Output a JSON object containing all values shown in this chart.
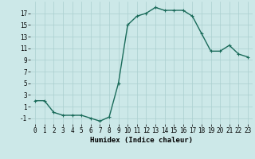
{
  "x": [
    0,
    1,
    2,
    3,
    4,
    5,
    6,
    7,
    8,
    9,
    10,
    11,
    12,
    13,
    14,
    15,
    16,
    17,
    18,
    19,
    20,
    21,
    22,
    23
  ],
  "y": [
    2,
    2,
    0,
    -0.5,
    -0.5,
    -0.5,
    -1,
    -1.5,
    -0.8,
    5,
    15,
    16.5,
    17,
    18,
    17.5,
    17.5,
    17.5,
    16.5,
    13.5,
    10.5,
    10.5,
    11.5,
    10,
    9.5
  ],
  "line_color": "#1a6b5a",
  "marker": "+",
  "background_color": "#cce8e8",
  "grid_color": "#aacfcf",
  "xlabel": "Humidex (Indice chaleur)",
  "xlim": [
    -0.5,
    23.5
  ],
  "ylim": [
    -2,
    19
  ],
  "yticks": [
    -1,
    1,
    3,
    5,
    7,
    9,
    11,
    13,
    15,
    17
  ],
  "xticks": [
    0,
    1,
    2,
    3,
    4,
    5,
    6,
    7,
    8,
    9,
    10,
    11,
    12,
    13,
    14,
    15,
    16,
    17,
    18,
    19,
    20,
    21,
    22,
    23
  ],
  "tick_fontsize": 5.5,
  "xlabel_fontsize": 6.5,
  "linewidth": 1.0,
  "markersize": 3.5
}
